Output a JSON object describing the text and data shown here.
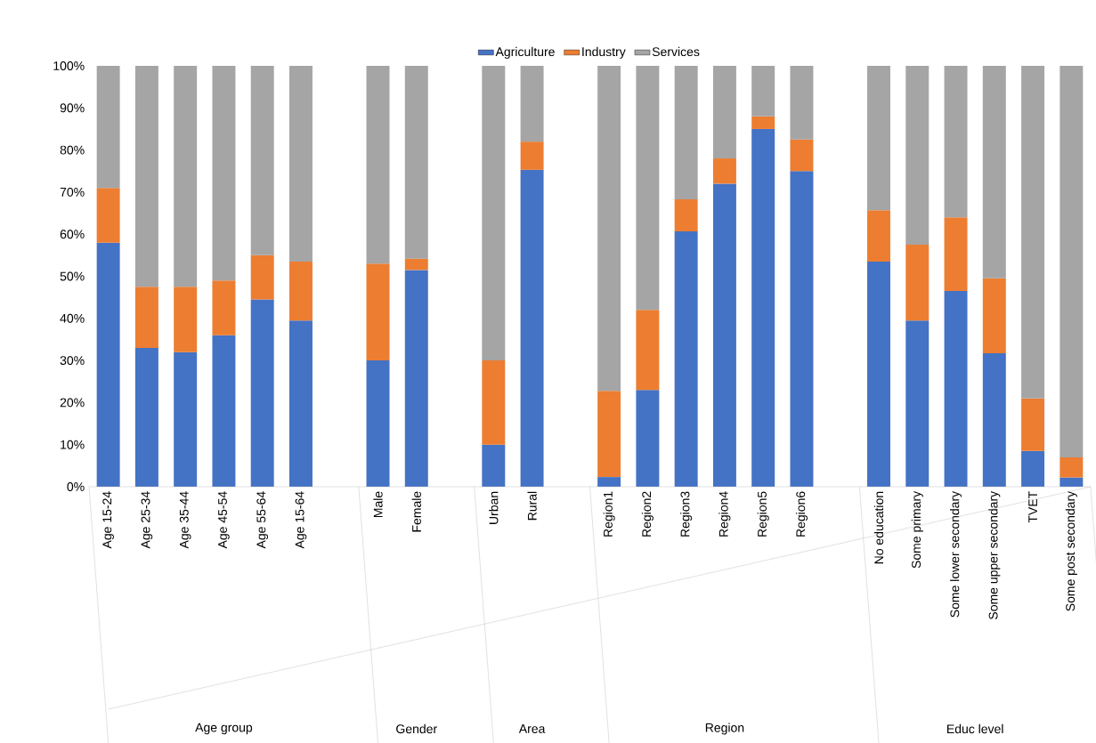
{
  "chart_data": {
    "type": "bar",
    "stacked": true,
    "categories": [
      "Age 15-24",
      "Age 25-34",
      "Age 35-44",
      "Age 45-54",
      "Age 55-64",
      "Age 15-64",
      null,
      "Male",
      "Female",
      null,
      "Urban",
      "Rural",
      null,
      "Region1",
      "Region2",
      "Region3",
      "Region4",
      "Region5",
      "Region6",
      null,
      "No education",
      "Some primary",
      "Some lower secondary",
      "Some upper secondary",
      "TVET",
      "Some post secondary"
    ],
    "series": [
      {
        "name": "Agriculture",
        "color": "#4472c4",
        "values": [
          58,
          33,
          32,
          36,
          44.5,
          39.5,
          null,
          30,
          51.5,
          null,
          10,
          75.3,
          null,
          2.3,
          23,
          60.7,
          72,
          85,
          75,
          null,
          53.5,
          39.5,
          46.5,
          31.7,
          8.5,
          2.2
        ]
      },
      {
        "name": "Industry",
        "color": "#ed7d31",
        "values": [
          13,
          14.5,
          15.5,
          13,
          10.5,
          14,
          null,
          23,
          2.7,
          null,
          20,
          6.7,
          null,
          20.5,
          19,
          7.6,
          6,
          3,
          7.5,
          null,
          12.2,
          18,
          17.5,
          17.8,
          12.5,
          4.8
        ]
      },
      {
        "name": "Services",
        "color": "#a5a5a5",
        "values": [
          29,
          52.5,
          52.5,
          51,
          45,
          46.5,
          null,
          47,
          45.8,
          null,
          70,
          18,
          null,
          77.2,
          58,
          31.7,
          22,
          12,
          17.5,
          null,
          34.3,
          42.5,
          36,
          50.5,
          79,
          93
        ]
      }
    ],
    "ylim": [
      0,
      100
    ],
    "yticks": [
      {
        "value": 0,
        "label": "0%"
      },
      {
        "value": 10,
        "label": "10%"
      },
      {
        "value": 20,
        "label": "20%"
      },
      {
        "value": 30,
        "label": "30%"
      },
      {
        "value": 40,
        "label": "40%"
      },
      {
        "value": 50,
        "label": "50%"
      },
      {
        "value": 60,
        "label": "60%"
      },
      {
        "value": 70,
        "label": "70%"
      },
      {
        "value": 80,
        "label": "80%"
      },
      {
        "value": 90,
        "label": "90%"
      },
      {
        "value": 100,
        "label": "100%"
      }
    ],
    "legend": "top",
    "annotations": [
      "Age group",
      "Gender",
      "Area",
      "Region",
      "Educ level"
    ]
  }
}
